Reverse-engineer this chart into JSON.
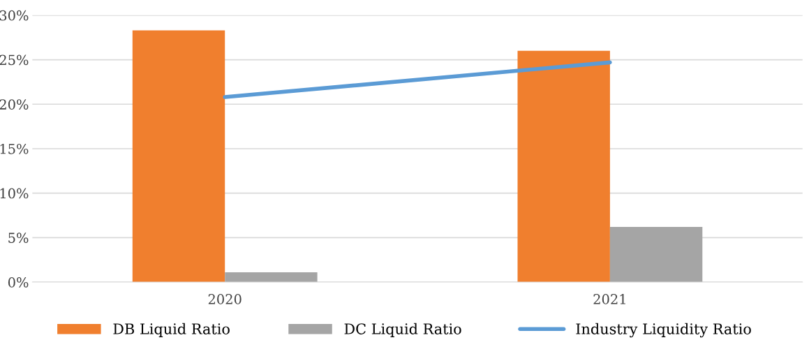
{
  "chart_data": {
    "type": "bar",
    "categories": [
      "2020",
      "2021"
    ],
    "series": [
      {
        "name": "DB Liquid Ratio",
        "color": "#f07f2e",
        "values": [
          28.3,
          26.0
        ]
      },
      {
        "name": "DC Liquid Ratio",
        "color": "#a5a5a5",
        "values": [
          1.1,
          6.2
        ]
      },
      {
        "name": "Industry Liquidity Ratio",
        "color": "#5b9bd5",
        "type": "line",
        "values": [
          20.8,
          24.7
        ]
      }
    ],
    "ylim": [
      0,
      30
    ],
    "yticks": [
      {
        "value": 0,
        "label": "0%"
      },
      {
        "value": 5,
        "label": "5%"
      },
      {
        "value": 10,
        "label": "10%"
      },
      {
        "value": 15,
        "label": "15%"
      },
      {
        "value": 20,
        "label": "20%"
      },
      {
        "value": 25,
        "label": "25%"
      },
      {
        "value": 30,
        "label": "30%"
      }
    ],
    "grid": "y",
    "legend": "bottom",
    "marker": "none",
    "line_style": "solid"
  }
}
